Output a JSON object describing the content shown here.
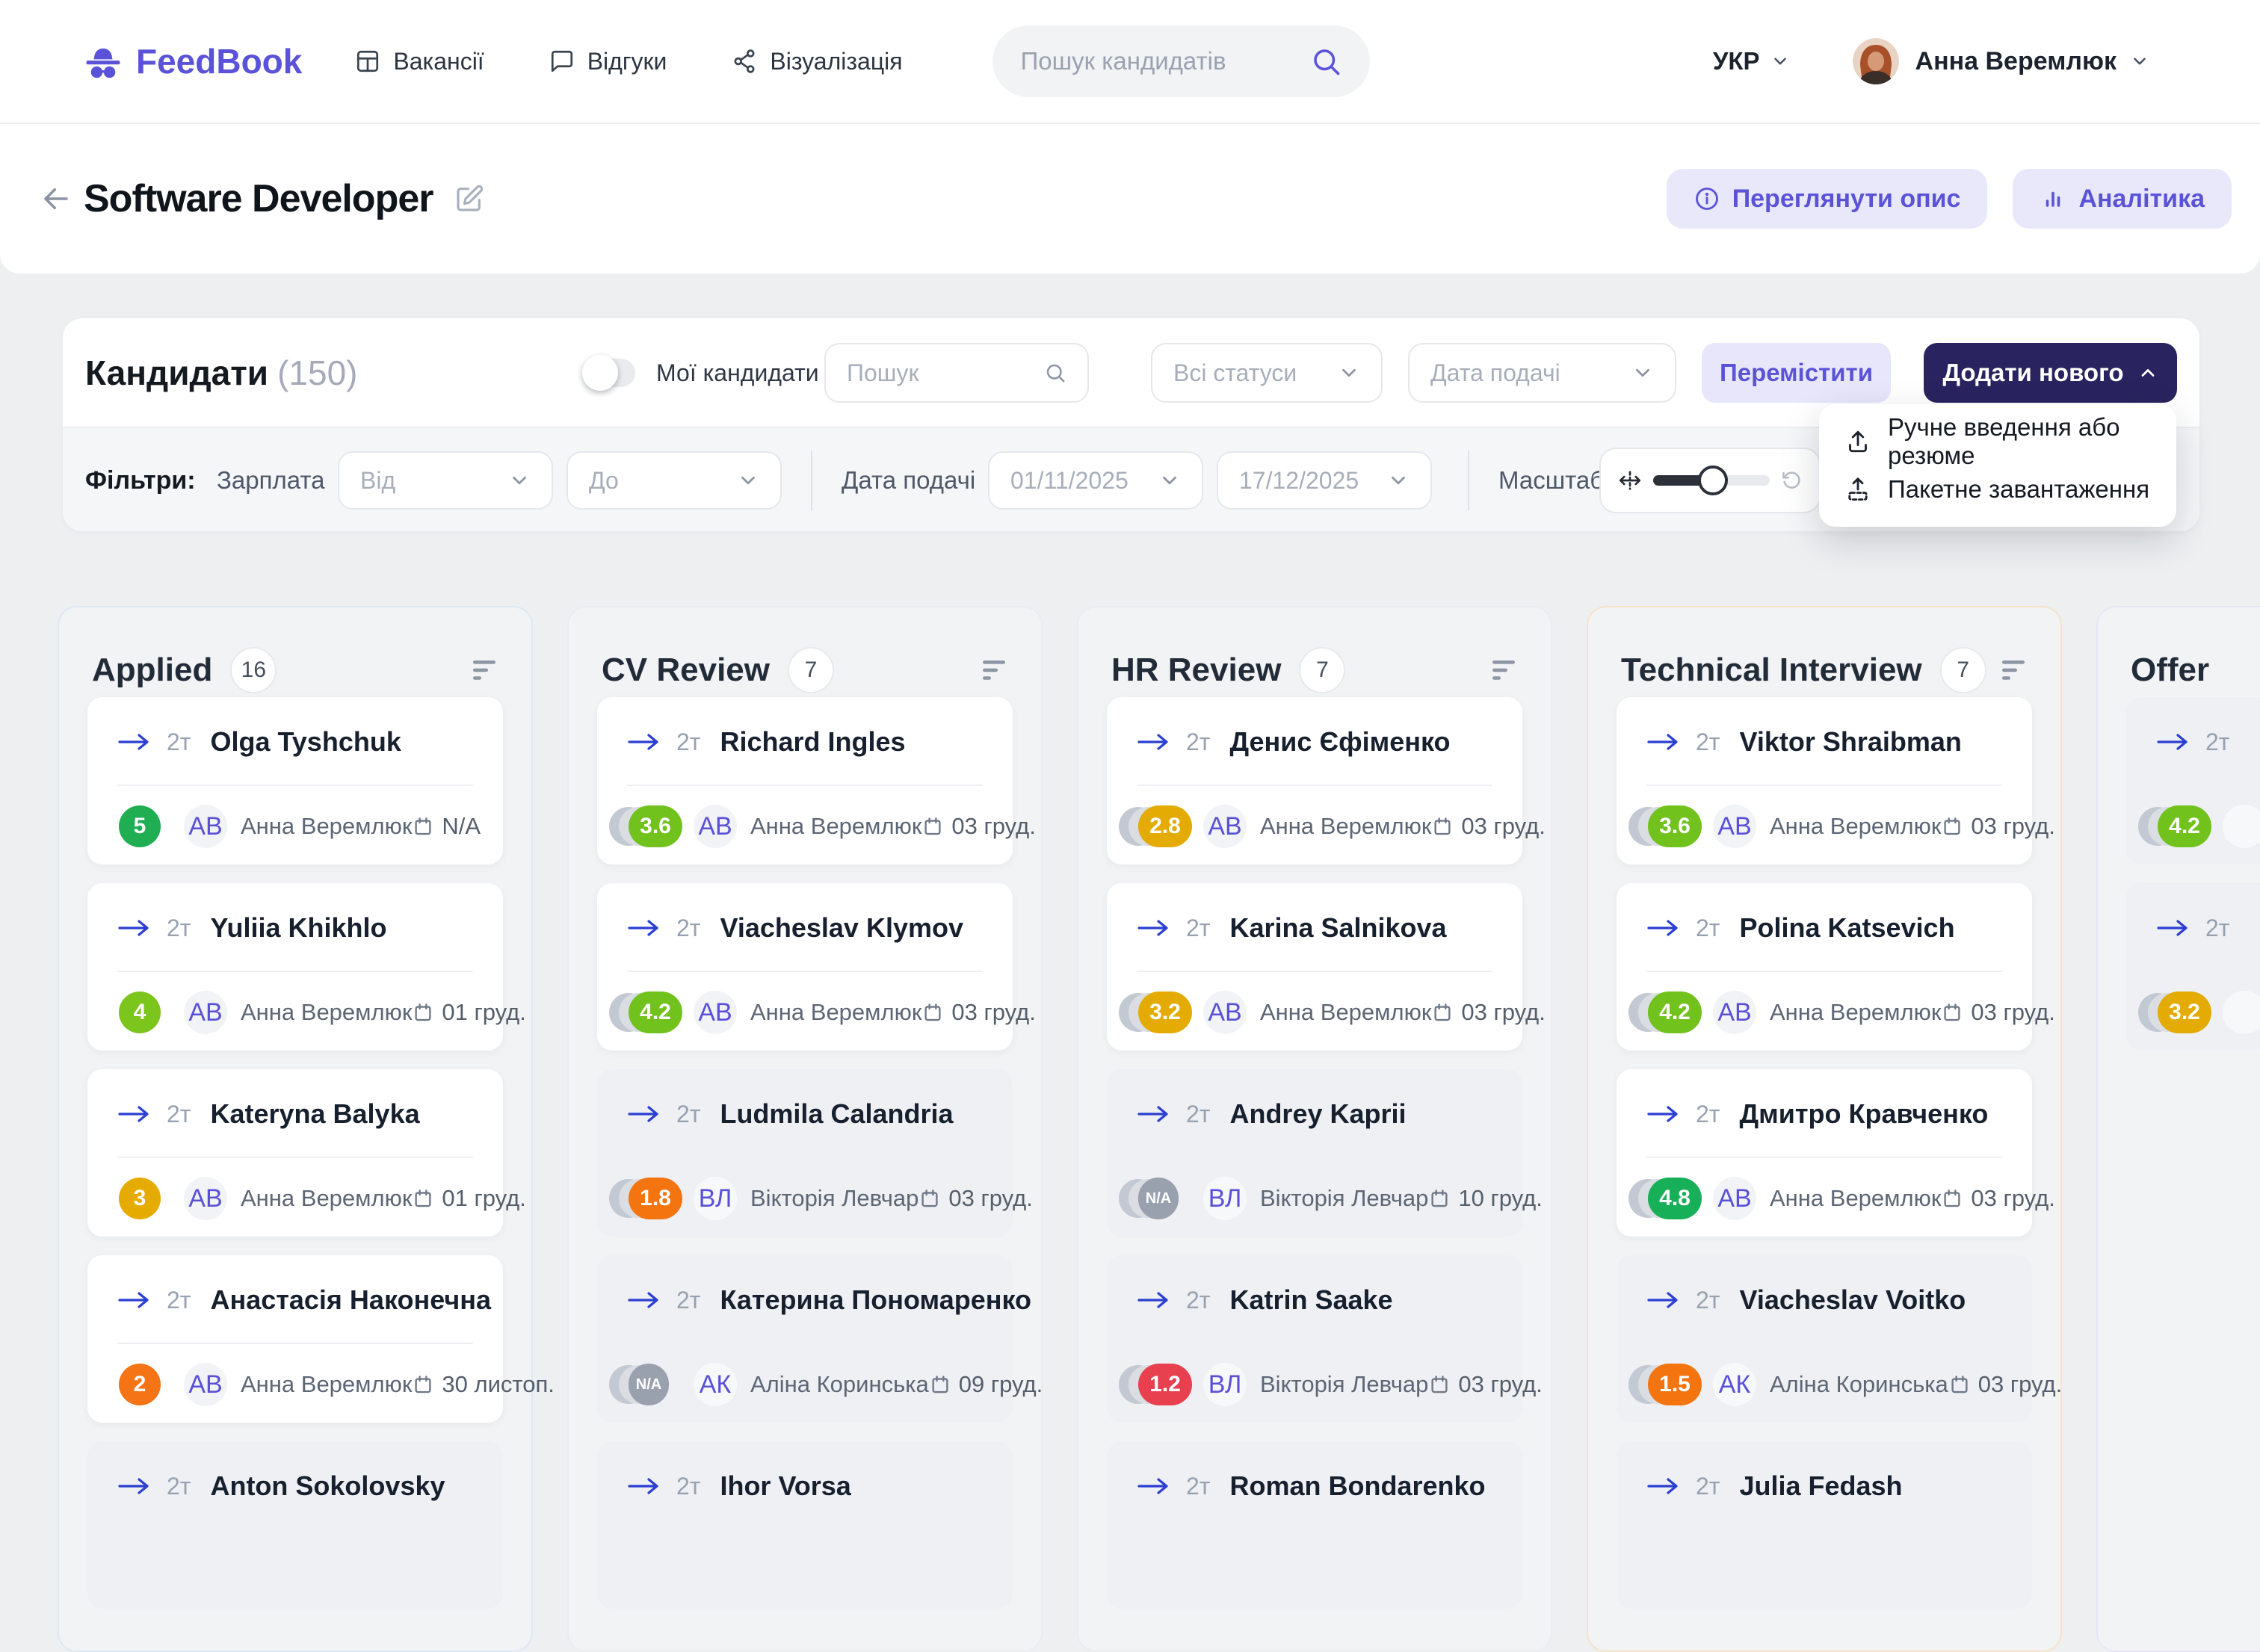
{
  "brand": {
    "name": "FeedBook"
  },
  "nav": [
    {
      "label": "Вакансії",
      "icon": "board-icon"
    },
    {
      "label": "Відгуки",
      "icon": "chat-icon"
    },
    {
      "label": "Візуалізація",
      "icon": "share-icon"
    }
  ],
  "navbar_search": {
    "placeholder": "Пошук кандидатів"
  },
  "user": {
    "lang": "УКР",
    "name": "Анна Веремлюк"
  },
  "page": {
    "title": "Software Developer",
    "view_description": "Переглянути опис",
    "analytics": "Аналітика"
  },
  "toolbar": {
    "title": "Кандидати",
    "count": "(150)",
    "my_candidates": "Мої кандидати",
    "search_placeholder": "Пошук",
    "status_filter": "Всі статуси",
    "date_filter": "Дата подачі",
    "move_label": "Перемістити",
    "add_new_label": "Додати нового"
  },
  "add_menu": [
    {
      "label": "Ручне введення або резюме",
      "icon": "upload-icon"
    },
    {
      "label": "Пакетне завантаження",
      "icon": "batch-upload-icon"
    }
  ],
  "filters": {
    "label": "Фільтри:",
    "salary_label": "Зарплата",
    "from_placeholder": "Від",
    "to_placeholder": "До",
    "date_label": "Дата подачі",
    "date_from": "01/11/2025",
    "date_to": "17/12/2025",
    "zoom_label": "Масштаб"
  },
  "board": {
    "columns": [
      {
        "title": "Applied",
        "count": "16",
        "border": "#dde8f6",
        "cards": [
          {
            "name": "Olga Tyshchuk",
            "tag": "2т",
            "score": "5",
            "score_color": "#1fae52",
            "score_style": "circle",
            "initials": "АВ",
            "recruiter": "Анна Веремлюк",
            "date": "N/A",
            "muted": false
          },
          {
            "name": "Yuliia Khikhlo",
            "tag": "2т",
            "score": "4",
            "score_color": "#7cc51c",
            "score_style": "circle",
            "initials": "АВ",
            "recruiter": "Анна Веремлюк",
            "date": "01 груд.",
            "muted": false
          },
          {
            "name": "Kateryna Balyka",
            "tag": "2т",
            "score": "3",
            "score_color": "#e6ab00",
            "score_style": "circle",
            "initials": "АВ",
            "recruiter": "Анна Веремлюк",
            "date": "01 груд.",
            "muted": false
          },
          {
            "name": "Анастасія Наконечна",
            "tag": "2т",
            "score": "2",
            "score_color": "#f47416",
            "score_style": "circle",
            "initials": "АВ",
            "recruiter": "Анна Веремлюк",
            "date": "30 листоп.",
            "muted": false
          },
          {
            "name": "Anton Sokolovsky",
            "tag": "2т",
            "score": "",
            "score_color": "",
            "score_style": "none",
            "initials": "",
            "recruiter": "",
            "date": "",
            "muted": true
          }
        ]
      },
      {
        "title": "CV Review",
        "count": "7",
        "border": "#eaecef",
        "cards": [
          {
            "name": "Richard Ingles",
            "tag": "2т",
            "score": "3.6",
            "score_color": "#72c21e",
            "score_style": "pill",
            "initials": "АВ",
            "recruiter": "Анна Веремлюк",
            "date": "03 груд.",
            "muted": false
          },
          {
            "name": "Viacheslav Klymov",
            "tag": "2т",
            "score": "4.2",
            "score_color": "#72c21e",
            "score_style": "pill",
            "initials": "АВ",
            "recruiter": "Анна Веремлюк",
            "date": "03 груд.",
            "muted": false
          },
          {
            "name": "Ludmila Calandria",
            "tag": "2т",
            "score": "1.8",
            "score_color": "#f4740f",
            "score_style": "pill",
            "initials": "ВЛ",
            "recruiter": "Вікторія Левчар",
            "date": "03 груд.",
            "muted": true
          },
          {
            "name": "Катерина Пономаренко",
            "tag": "2т",
            "score": "N/A",
            "score_color": "#9aa1ae",
            "score_style": "na",
            "initials": "АК",
            "recruiter": "Аліна Коринська",
            "date": "09 груд.",
            "muted": true
          },
          {
            "name": "Ihor Vorsa",
            "tag": "2т",
            "score": "",
            "score_color": "",
            "score_style": "none",
            "initials": "",
            "recruiter": "",
            "date": "",
            "muted": true
          }
        ]
      },
      {
        "title": "HR Review",
        "count": "7",
        "border": "#eaecef",
        "cards": [
          {
            "name": "Денис Єфіменко",
            "tag": "2т",
            "score": "2.8",
            "score_color": "#e3ab04",
            "score_style": "pill",
            "initials": "АВ",
            "recruiter": "Анна Веремлюк",
            "date": "03 груд.",
            "muted": false
          },
          {
            "name": "Karina Salnikova",
            "tag": "2т",
            "score": "3.2",
            "score_color": "#e3ab04",
            "score_style": "pill",
            "initials": "АВ",
            "recruiter": "Анна Веремлюк",
            "date": "03 груд.",
            "muted": false
          },
          {
            "name": "Andrey Kaprii",
            "tag": "2т",
            "score": "N/A",
            "score_color": "#9aa1ae",
            "score_style": "na",
            "initials": "ВЛ",
            "recruiter": "Вікторія Левчар",
            "date": "10 груд.",
            "muted": true
          },
          {
            "name": "Katrin Saake",
            "tag": "2т",
            "score": "1.2",
            "score_color": "#e8404e",
            "score_style": "pill",
            "initials": "ВЛ",
            "recruiter": "Вікторія Левчар",
            "date": "03 груд.",
            "muted": true
          },
          {
            "name": "Roman Bondarenko",
            "tag": "2т",
            "score": "",
            "score_color": "",
            "score_style": "none",
            "initials": "",
            "recruiter": "",
            "date": "",
            "muted": true
          }
        ]
      },
      {
        "title": "Technical Interview",
        "count": "7",
        "border": "#f7e3c6",
        "cards": [
          {
            "name": "Viktor Shraibman",
            "tag": "2т",
            "score": "3.6",
            "score_color": "#72c21e",
            "score_style": "pill",
            "initials": "АВ",
            "recruiter": "Анна Веремлюк",
            "date": "03 груд.",
            "muted": false
          },
          {
            "name": "Polina Katsevich",
            "tag": "2т",
            "score": "4.2",
            "score_color": "#72c21e",
            "score_style": "pill",
            "initials": "АВ",
            "recruiter": "Анна Веремлюк",
            "date": "03 груд.",
            "muted": false
          },
          {
            "name": "Дмитро Кравченко",
            "tag": "2т",
            "score": "4.8",
            "score_color": "#17b058",
            "score_style": "pill",
            "initials": "АВ",
            "recruiter": "Анна Веремлюк",
            "date": "03 груд.",
            "muted": false
          },
          {
            "name": "Viacheslav Voitko",
            "tag": "2т",
            "score": "1.5",
            "score_color": "#f4740f",
            "score_style": "pill",
            "initials": "АК",
            "recruiter": "Аліна Коринська",
            "date": "03 груд.",
            "muted": true
          },
          {
            "name": "Julia Fedash",
            "tag": "2т",
            "score": "",
            "score_color": "",
            "score_style": "none",
            "initials": "",
            "recruiter": "",
            "date": "",
            "muted": true
          }
        ]
      },
      {
        "title": "Offer",
        "count": "",
        "border": "#e8e5f6",
        "cards": [
          {
            "name": "",
            "tag": "2т",
            "score": "4.2",
            "score_color": "#72c21e",
            "score_style": "pill",
            "initials": "",
            "recruiter": "",
            "date": "",
            "muted": true
          },
          {
            "name": "",
            "tag": "2т",
            "score": "3.2",
            "score_color": "#e3ab04",
            "score_style": "pill",
            "initials": "",
            "recruiter": "",
            "date": "",
            "muted": true
          }
        ]
      }
    ]
  }
}
